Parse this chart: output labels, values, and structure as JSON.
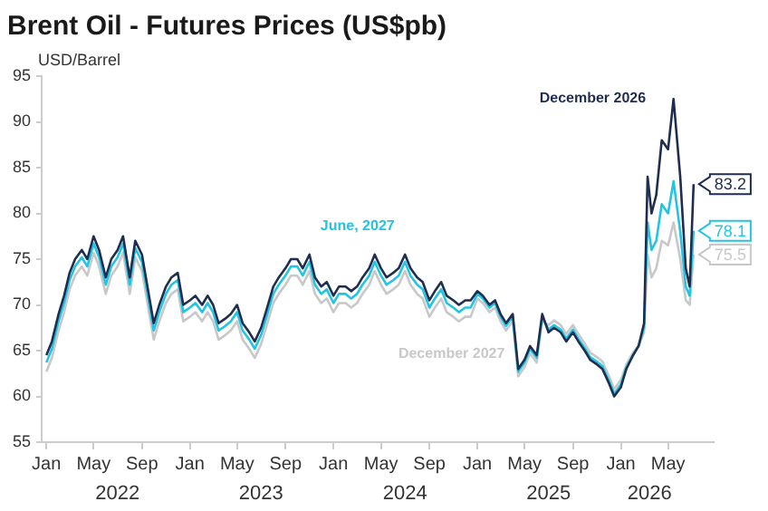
{
  "chart_data": {
    "type": "line",
    "title": "Brent Oil - Futures Prices (US$pb)",
    "ylabel": "USD/Barrel",
    "x": [
      "2022-01-01",
      "2022-01-15",
      "2022-02-01",
      "2022-02-15",
      "2022-03-01",
      "2022-03-15",
      "2022-04-01",
      "2022-04-15",
      "2022-05-01",
      "2022-05-15",
      "2022-06-01",
      "2022-06-15",
      "2022-07-01",
      "2022-07-15",
      "2022-08-01",
      "2022-08-15",
      "2022-09-01",
      "2022-09-15",
      "2022-10-01",
      "2022-10-15",
      "2022-11-01",
      "2022-11-15",
      "2022-12-01",
      "2022-12-15",
      "2023-01-01",
      "2023-01-15",
      "2023-02-01",
      "2023-02-15",
      "2023-03-01",
      "2023-03-15",
      "2023-04-01",
      "2023-04-15",
      "2023-05-01",
      "2023-05-15",
      "2023-06-01",
      "2023-06-15",
      "2023-07-01",
      "2023-07-15",
      "2023-08-01",
      "2023-08-15",
      "2023-09-01",
      "2023-09-15",
      "2023-10-01",
      "2023-10-15",
      "2023-11-01",
      "2023-11-15",
      "2023-12-01",
      "2023-12-15",
      "2024-01-01",
      "2024-01-15",
      "2024-02-01",
      "2024-02-15",
      "2024-03-01",
      "2024-03-15",
      "2024-04-01",
      "2024-04-15",
      "2024-05-01",
      "2024-05-15",
      "2024-06-01",
      "2024-06-15",
      "2024-07-01",
      "2024-07-15",
      "2024-08-01",
      "2024-08-15",
      "2024-09-01",
      "2024-09-15",
      "2024-10-01",
      "2024-10-15",
      "2024-11-01",
      "2024-11-15",
      "2024-12-01",
      "2024-12-15",
      "2025-01-01",
      "2025-01-15",
      "2025-02-01",
      "2025-02-15",
      "2025-03-01",
      "2025-03-15",
      "2025-04-01",
      "2025-04-15",
      "2025-05-01",
      "2025-05-15",
      "2025-06-01",
      "2025-06-15",
      "2025-07-01",
      "2025-07-15",
      "2025-08-01",
      "2025-08-15",
      "2025-09-01",
      "2025-09-15",
      "2025-10-01",
      "2025-10-15",
      "2025-11-01",
      "2025-11-15",
      "2025-12-01",
      "2025-12-15",
      "2026-01-01",
      "2026-01-15",
      "2026-02-01",
      "2026-02-15",
      "2026-03-01",
      "2026-03-10",
      "2026-03-20",
      "2026-04-01",
      "2026-04-15",
      "2026-05-01",
      "2026-05-15",
      "2026-06-01",
      "2026-06-15",
      "2026-06-25",
      "2026-07-05"
    ],
    "series": [
      {
        "name": "December 2026",
        "color": "#1f2d4e",
        "values": [
          64.5,
          66,
          69,
          71,
          73.5,
          75,
          76,
          75,
          77.5,
          76,
          73,
          75,
          76,
          77.5,
          73,
          77,
          75.5,
          72,
          68,
          70,
          72,
          73,
          73.5,
          70,
          70.5,
          71,
          70,
          71,
          70,
          68,
          68.5,
          69,
          70,
          68,
          67,
          66,
          67.5,
          69.5,
          72,
          73,
          74,
          75,
          75,
          74,
          75.5,
          73,
          72,
          72.5,
          71,
          72,
          72,
          71.5,
          72,
          73,
          74,
          75.5,
          74,
          73,
          73.5,
          74,
          75.5,
          74,
          73,
          72.5,
          70.5,
          71.5,
          72.5,
          71,
          70.5,
          70,
          70.5,
          70.5,
          71.5,
          71,
          70,
          70.5,
          69,
          68,
          69,
          63,
          64,
          65.5,
          64.5,
          69,
          67,
          67.5,
          67,
          66,
          67,
          66,
          65,
          64,
          63.5,
          63,
          61.5,
          60,
          61,
          63,
          64.5,
          65.5,
          68,
          84,
          80,
          82,
          88,
          87,
          92.5,
          84,
          74,
          72,
          83.2
        ],
        "value_labels": [
          null,
          null,
          null,
          null,
          null,
          null,
          null,
          null,
          null,
          null,
          null,
          null,
          null,
          null,
          null,
          null,
          null,
          null,
          null,
          null,
          null,
          null,
          null,
          null,
          null,
          null,
          null,
          null,
          null,
          null,
          null,
          null,
          null,
          null,
          null,
          null,
          null,
          null,
          null,
          null,
          null,
          null,
          null,
          null,
          null,
          null,
          null,
          null,
          null,
          null,
          null,
          null,
          null,
          null,
          null,
          null,
          null,
          null,
          null,
          null,
          null,
          null,
          null,
          null,
          null,
          null,
          null,
          null,
          null,
          null,
          null,
          null,
          null,
          null,
          null,
          null,
          null,
          null,
          null,
          null,
          null,
          null,
          null,
          null,
          null,
          null,
          null,
          null,
          null,
          null,
          null,
          null,
          null,
          null,
          null,
          null,
          null,
          null,
          null,
          null,
          null,
          null,
          null,
          null,
          null,
          null,
          null,
          null,
          null,
          null,
          "83.2"
        ]
      },
      {
        "name": "June, 2027",
        "color": "#22c4e4",
        "values": [
          63.7,
          65.2,
          68.2,
          70.2,
          72.7,
          74.2,
          75.2,
          74.2,
          76.7,
          75.2,
          72.2,
          74.2,
          75.2,
          76.7,
          72.2,
          76.2,
          74.7,
          71.2,
          67.2,
          69.2,
          71.2,
          72.2,
          72.7,
          69.2,
          69.7,
          70.2,
          69.2,
          70.2,
          69.2,
          67.2,
          67.7,
          68.2,
          69.2,
          67.2,
          66.2,
          65.2,
          66.7,
          68.7,
          71.2,
          72.2,
          73.2,
          74.2,
          74.2,
          73.2,
          74.7,
          72.2,
          71.2,
          71.7,
          70.2,
          71.2,
          71.2,
          70.7,
          71.2,
          72.2,
          73.2,
          74.7,
          73.2,
          72.2,
          72.7,
          73.2,
          74.7,
          73.2,
          72.2,
          71.7,
          69.7,
          70.7,
          71.7,
          70.2,
          69.7,
          69.2,
          69.7,
          69.7,
          71.2,
          70.7,
          69.7,
          70.2,
          68.7,
          67.7,
          68.7,
          62.7,
          63.7,
          65.2,
          64.2,
          68.7,
          67.3,
          67.8,
          67.3,
          66.3,
          67.3,
          66.3,
          65.3,
          64.3,
          63.8,
          63.3,
          61.8,
          60.3,
          61.3,
          63.2,
          64.5,
          65.5,
          67.5,
          79,
          76,
          77,
          81,
          80,
          83.5,
          78,
          72,
          71,
          78.1
        ],
        "value_labels": [
          null,
          null,
          null,
          null,
          null,
          null,
          null,
          null,
          null,
          null,
          null,
          null,
          null,
          null,
          null,
          null,
          null,
          null,
          null,
          null,
          null,
          null,
          null,
          null,
          null,
          null,
          null,
          null,
          null,
          null,
          null,
          null,
          null,
          null,
          null,
          null,
          null,
          null,
          null,
          null,
          null,
          null,
          null,
          null,
          null,
          null,
          null,
          null,
          null,
          null,
          null,
          null,
          null,
          null,
          null,
          null,
          null,
          null,
          null,
          null,
          null,
          null,
          null,
          null,
          null,
          null,
          null,
          null,
          null,
          null,
          null,
          null,
          null,
          null,
          null,
          null,
          null,
          null,
          null,
          null,
          null,
          null,
          null,
          null,
          null,
          null,
          null,
          null,
          null,
          null,
          null,
          null,
          null,
          null,
          null,
          null,
          null,
          null,
          null,
          null,
          null,
          null,
          null,
          null,
          null,
          null,
          null,
          null,
          null,
          null,
          "78.1"
        ]
      },
      {
        "name": "December 2027",
        "color": "#c8c8c8",
        "values": [
          62.7,
          64.2,
          67.2,
          69.2,
          71.7,
          73.2,
          74.2,
          73.2,
          75.7,
          74.2,
          71.2,
          73.2,
          74.2,
          75.7,
          71.2,
          75.2,
          73.7,
          70.2,
          66.2,
          68.2,
          70.2,
          71.2,
          71.7,
          68.2,
          68.7,
          69.2,
          68.2,
          69.2,
          68.2,
          66.2,
          66.7,
          67.2,
          68.2,
          66.2,
          65.2,
          64.2,
          65.7,
          67.7,
          70.2,
          71.2,
          72.2,
          73.2,
          73.2,
          72.2,
          73.7,
          71.2,
          70.2,
          70.7,
          69.2,
          70.2,
          70.2,
          69.7,
          70.2,
          71.2,
          72.2,
          73.7,
          72.2,
          71.2,
          71.7,
          72.2,
          73.7,
          72.2,
          71.2,
          70.7,
          68.7,
          69.7,
          70.7,
          69.2,
          68.7,
          68.2,
          68.7,
          68.7,
          70.7,
          70.2,
          69.2,
          69.7,
          68.2,
          67.2,
          68.2,
          62.2,
          63.2,
          64.7,
          63.7,
          68.2,
          67.8,
          68.3,
          67.8,
          66.8,
          67.8,
          66.8,
          65.8,
          64.8,
          64.3,
          63.8,
          62.3,
          60.8,
          61.8,
          63.5,
          64.8,
          65.5,
          67,
          75.5,
          73,
          74,
          77,
          76.5,
          79,
          75,
          70.5,
          70,
          75.5
        ],
        "value_labels": [
          null,
          null,
          null,
          null,
          null,
          null,
          null,
          null,
          null,
          null,
          null,
          null,
          null,
          null,
          null,
          null,
          null,
          null,
          null,
          null,
          null,
          null,
          null,
          null,
          null,
          null,
          null,
          null,
          null,
          null,
          null,
          null,
          null,
          null,
          null,
          null,
          null,
          null,
          null,
          null,
          null,
          null,
          null,
          null,
          null,
          null,
          null,
          null,
          null,
          null,
          null,
          null,
          null,
          null,
          null,
          null,
          null,
          null,
          null,
          null,
          null,
          null,
          null,
          null,
          null,
          null,
          null,
          null,
          null,
          null,
          null,
          null,
          null,
          null,
          null,
          null,
          null,
          null,
          null,
          null,
          null,
          null,
          null,
          null,
          null,
          null,
          null,
          null,
          null,
          null,
          null,
          null,
          null,
          null,
          null,
          null,
          null,
          null,
          null,
          null,
          null,
          null,
          null,
          null,
          null,
          null,
          null,
          null,
          null,
          null,
          "75.5"
        ]
      }
    ],
    "xlim": [
      "2021-12-20",
      "2026-08-25"
    ],
    "xticks": [
      {
        "value": "2022-01-01",
        "label": "Jan"
      },
      {
        "value": "2022-05-01",
        "label": "May"
      },
      {
        "value": "2022-09-01",
        "label": "Sep"
      },
      {
        "value": "2023-01-01",
        "label": "Jan"
      },
      {
        "value": "2023-05-01",
        "label": "May"
      },
      {
        "value": "2023-09-01",
        "label": "Sep"
      },
      {
        "value": "2024-01-01",
        "label": "Jan"
      },
      {
        "value": "2024-05-01",
        "label": "May"
      },
      {
        "value": "2024-09-01",
        "label": "Sep"
      },
      {
        "value": "2025-01-01",
        "label": "Jan"
      },
      {
        "value": "2025-05-01",
        "label": "May"
      },
      {
        "value": "2025-09-01",
        "label": "Sep"
      },
      {
        "value": "2026-01-01",
        "label": "Jan"
      },
      {
        "value": "2026-05-01",
        "label": "May"
      }
    ],
    "x2lim": [
      "2021-12-20",
      "2026-08-25"
    ],
    "x2ticks": [
      {
        "value": "2022-07-01",
        "label": "2022"
      },
      {
        "value": "2023-07-01",
        "label": "2023"
      },
      {
        "value": "2024-07-01",
        "label": "2024"
      },
      {
        "value": "2025-07-01",
        "label": "2025"
      },
      {
        "value": "2026-03-15",
        "label": "2026"
      }
    ],
    "ylim": [
      55,
      95
    ],
    "yticks": [
      55,
      60,
      65,
      70,
      75,
      80,
      85,
      90,
      95
    ],
    "grid": false,
    "legend": false,
    "marker": "none",
    "line_style": "solid"
  }
}
